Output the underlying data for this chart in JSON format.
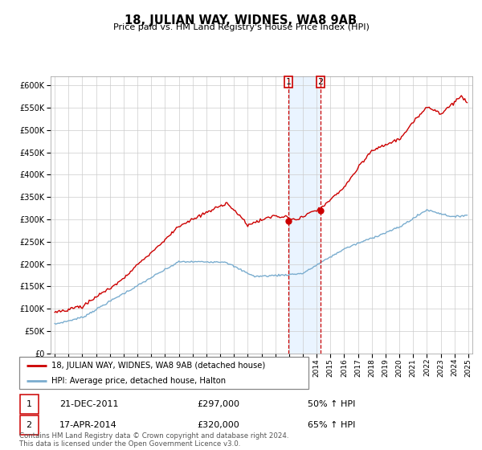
{
  "title": "18, JULIAN WAY, WIDNES, WA8 9AB",
  "subtitle": "Price paid vs. HM Land Registry's House Price Index (HPI)",
  "legend_line1": "18, JULIAN WAY, WIDNES, WA8 9AB (detached house)",
  "legend_line2": "HPI: Average price, detached house, Halton",
  "red_color": "#cc0000",
  "blue_color": "#7aadcf",
  "sale1_date": "21-DEC-2011",
  "sale1_price": 297000,
  "sale1_pct": "50% ↑ HPI",
  "sale2_date": "17-APR-2014",
  "sale2_price": 320000,
  "sale2_pct": "65% ↑ HPI",
  "footer": "Contains HM Land Registry data © Crown copyright and database right 2024.\nThis data is licensed under the Open Government Licence v3.0.",
  "ylim_min": 0,
  "ylim_max": 620000,
  "ylabel_ticks": [
    0,
    50000,
    100000,
    150000,
    200000,
    250000,
    300000,
    350000,
    400000,
    450000,
    500000,
    550000,
    600000
  ],
  "start_year": 1995,
  "end_year": 2025,
  "sale1_x": 2011.96,
  "sale2_x": 2014.29
}
